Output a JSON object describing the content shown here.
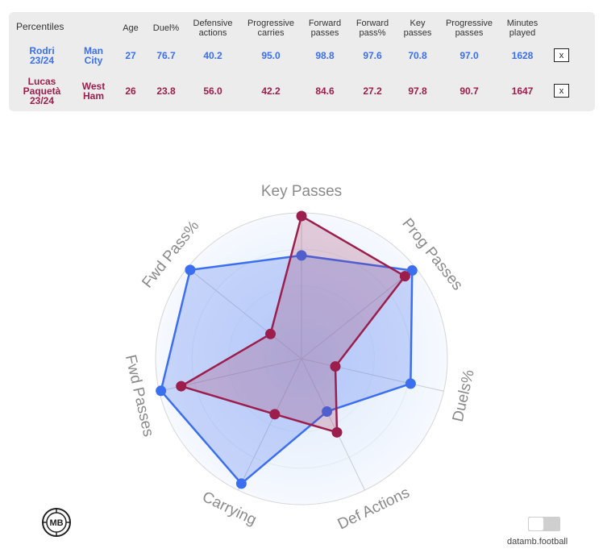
{
  "table": {
    "corner_label": "Percentiles",
    "headers": [
      "Age",
      "Duel%",
      "Defensive actions",
      "Progressive carries",
      "Forward passes",
      "Forward pass%",
      "Key passes",
      "Progressive passes",
      "Minutes played"
    ],
    "close_label": "x",
    "rows": [
      {
        "player": "Rodri 23/24",
        "team": "Man City",
        "values": [
          "27",
          "76.7",
          "40.2",
          "95.0",
          "98.8",
          "97.6",
          "70.8",
          "97.0",
          "1628"
        ],
        "color": "#3b6ff0"
      },
      {
        "player": "Lucas Paquetà 23/24",
        "team": "West Ham",
        "values": [
          "26",
          "23.8",
          "56.0",
          "42.2",
          "84.6",
          "27.2",
          "97.8",
          "90.7",
          "1647"
        ],
        "color": "#9c1e4c"
      }
    ]
  },
  "chart_data": {
    "type": "radar",
    "axes": [
      "Key Passes",
      "Prog Passes",
      "Duels%",
      "Def Actions",
      "Carrying",
      "Fwd Passes",
      "Fwd Pass%"
    ],
    "range": [
      0,
      100
    ],
    "series": [
      {
        "name": "Rodri 23/24",
        "color": "#3b6ff0",
        "values": [
          70.8,
          97.0,
          76.7,
          40.2,
          95.0,
          98.8,
          97.6
        ]
      },
      {
        "name": "Lucas Paquetà 23/24",
        "color": "#9c1e4c",
        "values": [
          97.8,
          90.7,
          23.8,
          56.0,
          42.2,
          84.6,
          27.2
        ]
      }
    ]
  },
  "logo_text": "MB",
  "brand": "datamb.football"
}
